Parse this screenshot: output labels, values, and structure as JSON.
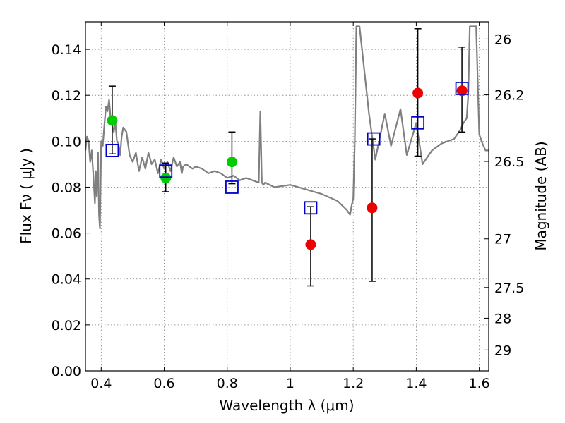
{
  "chart_data": {
    "type": "scatter",
    "xlabel": "Wavelength  λ (μm)",
    "ylabel": "Flux  Fν  ( μJy )",
    "y2label": "Magnitude (AB)",
    "xlim": [
      0.35,
      1.63
    ],
    "ylim": [
      0.0,
      0.152
    ],
    "x_ticks": [
      {
        "value": 0.4,
        "label": "0.4"
      },
      {
        "value": 0.6,
        "label": "0.6"
      },
      {
        "value": 0.8,
        "label": "0.8"
      },
      {
        "value": 1.0,
        "label": "1"
      },
      {
        "value": 1.2,
        "label": "1.2"
      },
      {
        "value": 1.4,
        "label": "1.4"
      },
      {
        "value": 1.6,
        "label": "1.6"
      }
    ],
    "y_ticks": [
      {
        "value": 0.0,
        "label": "0.00"
      },
      {
        "value": 0.02,
        "label": "0.02"
      },
      {
        "value": 0.04,
        "label": "0.04"
      },
      {
        "value": 0.06,
        "label": "0.06"
      },
      {
        "value": 0.08,
        "label": "0.08"
      },
      {
        "value": 0.1,
        "label": "0.10"
      },
      {
        "value": 0.12,
        "label": "0.12"
      },
      {
        "value": 0.14,
        "label": "0.14"
      }
    ],
    "y2_ticks": [
      {
        "flux": 0.1445,
        "label": "26"
      },
      {
        "flux": 0.1202,
        "label": "26.2"
      },
      {
        "flux": 0.0912,
        "label": "26.5"
      },
      {
        "flux": 0.0575,
        "label": "27"
      },
      {
        "flux": 0.0363,
        "label": "27.5"
      },
      {
        "flux": 0.0229,
        "label": "28"
      },
      {
        "flux": 0.0091,
        "label": "29"
      }
    ],
    "grid": true,
    "colors": {
      "sed_line": "#808080",
      "optical_points": "#00cc00",
      "nir_points": "#ee0000",
      "model_boxes": "#0000cc",
      "errorbars": "#000000",
      "grid": "#7f7f7f"
    },
    "sed_model_line": {
      "x": [
        0.35,
        0.355,
        0.36,
        0.365,
        0.37,
        0.375,
        0.38,
        0.383,
        0.386,
        0.39,
        0.393,
        0.396,
        0.4,
        0.405,
        0.41,
        0.415,
        0.42,
        0.425,
        0.43,
        0.435,
        0.44,
        0.445,
        0.45,
        0.455,
        0.46,
        0.465,
        0.47,
        0.48,
        0.49,
        0.5,
        0.51,
        0.52,
        0.53,
        0.54,
        0.55,
        0.56,
        0.57,
        0.58,
        0.59,
        0.6,
        0.61,
        0.62,
        0.63,
        0.64,
        0.65,
        0.656,
        0.66,
        0.67,
        0.68,
        0.69,
        0.7,
        0.72,
        0.74,
        0.76,
        0.78,
        0.8,
        0.82,
        0.84,
        0.86,
        0.88,
        0.9,
        0.905,
        0.91,
        0.915,
        0.92,
        0.95,
        1.0,
        1.05,
        1.1,
        1.15,
        1.18,
        1.19,
        1.195,
        1.2,
        1.205,
        1.21,
        1.215,
        1.22,
        1.25,
        1.27,
        1.3,
        1.32,
        1.35,
        1.37,
        1.4,
        1.42,
        1.45,
        1.48,
        1.5,
        1.52,
        1.54,
        1.55,
        1.56,
        1.565,
        1.57,
        1.58,
        1.59,
        1.6,
        1.61,
        1.62,
        1.63
      ],
      "y": [
        0.096,
        0.102,
        0.1,
        0.091,
        0.096,
        0.085,
        0.073,
        0.087,
        0.076,
        0.095,
        0.068,
        0.062,
        0.1,
        0.098,
        0.107,
        0.115,
        0.113,
        0.118,
        0.11,
        0.107,
        0.104,
        0.108,
        0.1,
        0.099,
        0.094,
        0.102,
        0.106,
        0.104,
        0.094,
        0.091,
        0.095,
        0.087,
        0.093,
        0.088,
        0.095,
        0.09,
        0.092,
        0.086,
        0.092,
        0.088,
        0.091,
        0.087,
        0.093,
        0.089,
        0.091,
        0.086,
        0.089,
        0.09,
        0.089,
        0.088,
        0.089,
        0.088,
        0.086,
        0.087,
        0.086,
        0.084,
        0.085,
        0.083,
        0.084,
        0.083,
        0.082,
        0.113,
        0.082,
        0.081,
        0.082,
        0.08,
        0.081,
        0.079,
        0.077,
        0.074,
        0.07,
        0.068,
        0.072,
        0.075,
        0.1,
        0.15,
        0.15,
        0.15,
        0.112,
        0.092,
        0.112,
        0.098,
        0.114,
        0.094,
        0.108,
        0.09,
        0.096,
        0.099,
        0.1,
        0.101,
        0.105,
        0.108,
        0.11,
        0.12,
        0.15,
        0.15,
        0.15,
        0.103,
        0.099,
        0.096,
        0.096
      ]
    },
    "series": [
      {
        "marker": "circle",
        "color": "optical_points",
        "x": [
          0.435,
          0.605,
          0.815
        ],
        "y": [
          0.109,
          0.084,
          0.091
        ],
        "yerr_low": [
          0.0945,
          0.078,
          0.0815
        ],
        "yerr_high": [
          0.124,
          0.0905,
          0.104
        ]
      },
      {
        "marker": "circle",
        "color": "nir_points",
        "x": [
          1.065,
          1.26,
          1.405,
          1.545
        ],
        "y": [
          0.055,
          0.071,
          0.121,
          0.122
        ],
        "yerr_low": [
          0.037,
          0.039,
          0.0935,
          0.104
        ],
        "yerr_high": [
          0.0715,
          0.101,
          0.149,
          0.141
        ]
      },
      {
        "marker": "open-square",
        "color": "model_boxes",
        "x": [
          0.435,
          0.605,
          0.815,
          1.065,
          1.265,
          1.405,
          1.545
        ],
        "y": [
          0.096,
          0.087,
          0.08,
          0.071,
          0.101,
          0.108,
          0.123
        ]
      }
    ]
  }
}
